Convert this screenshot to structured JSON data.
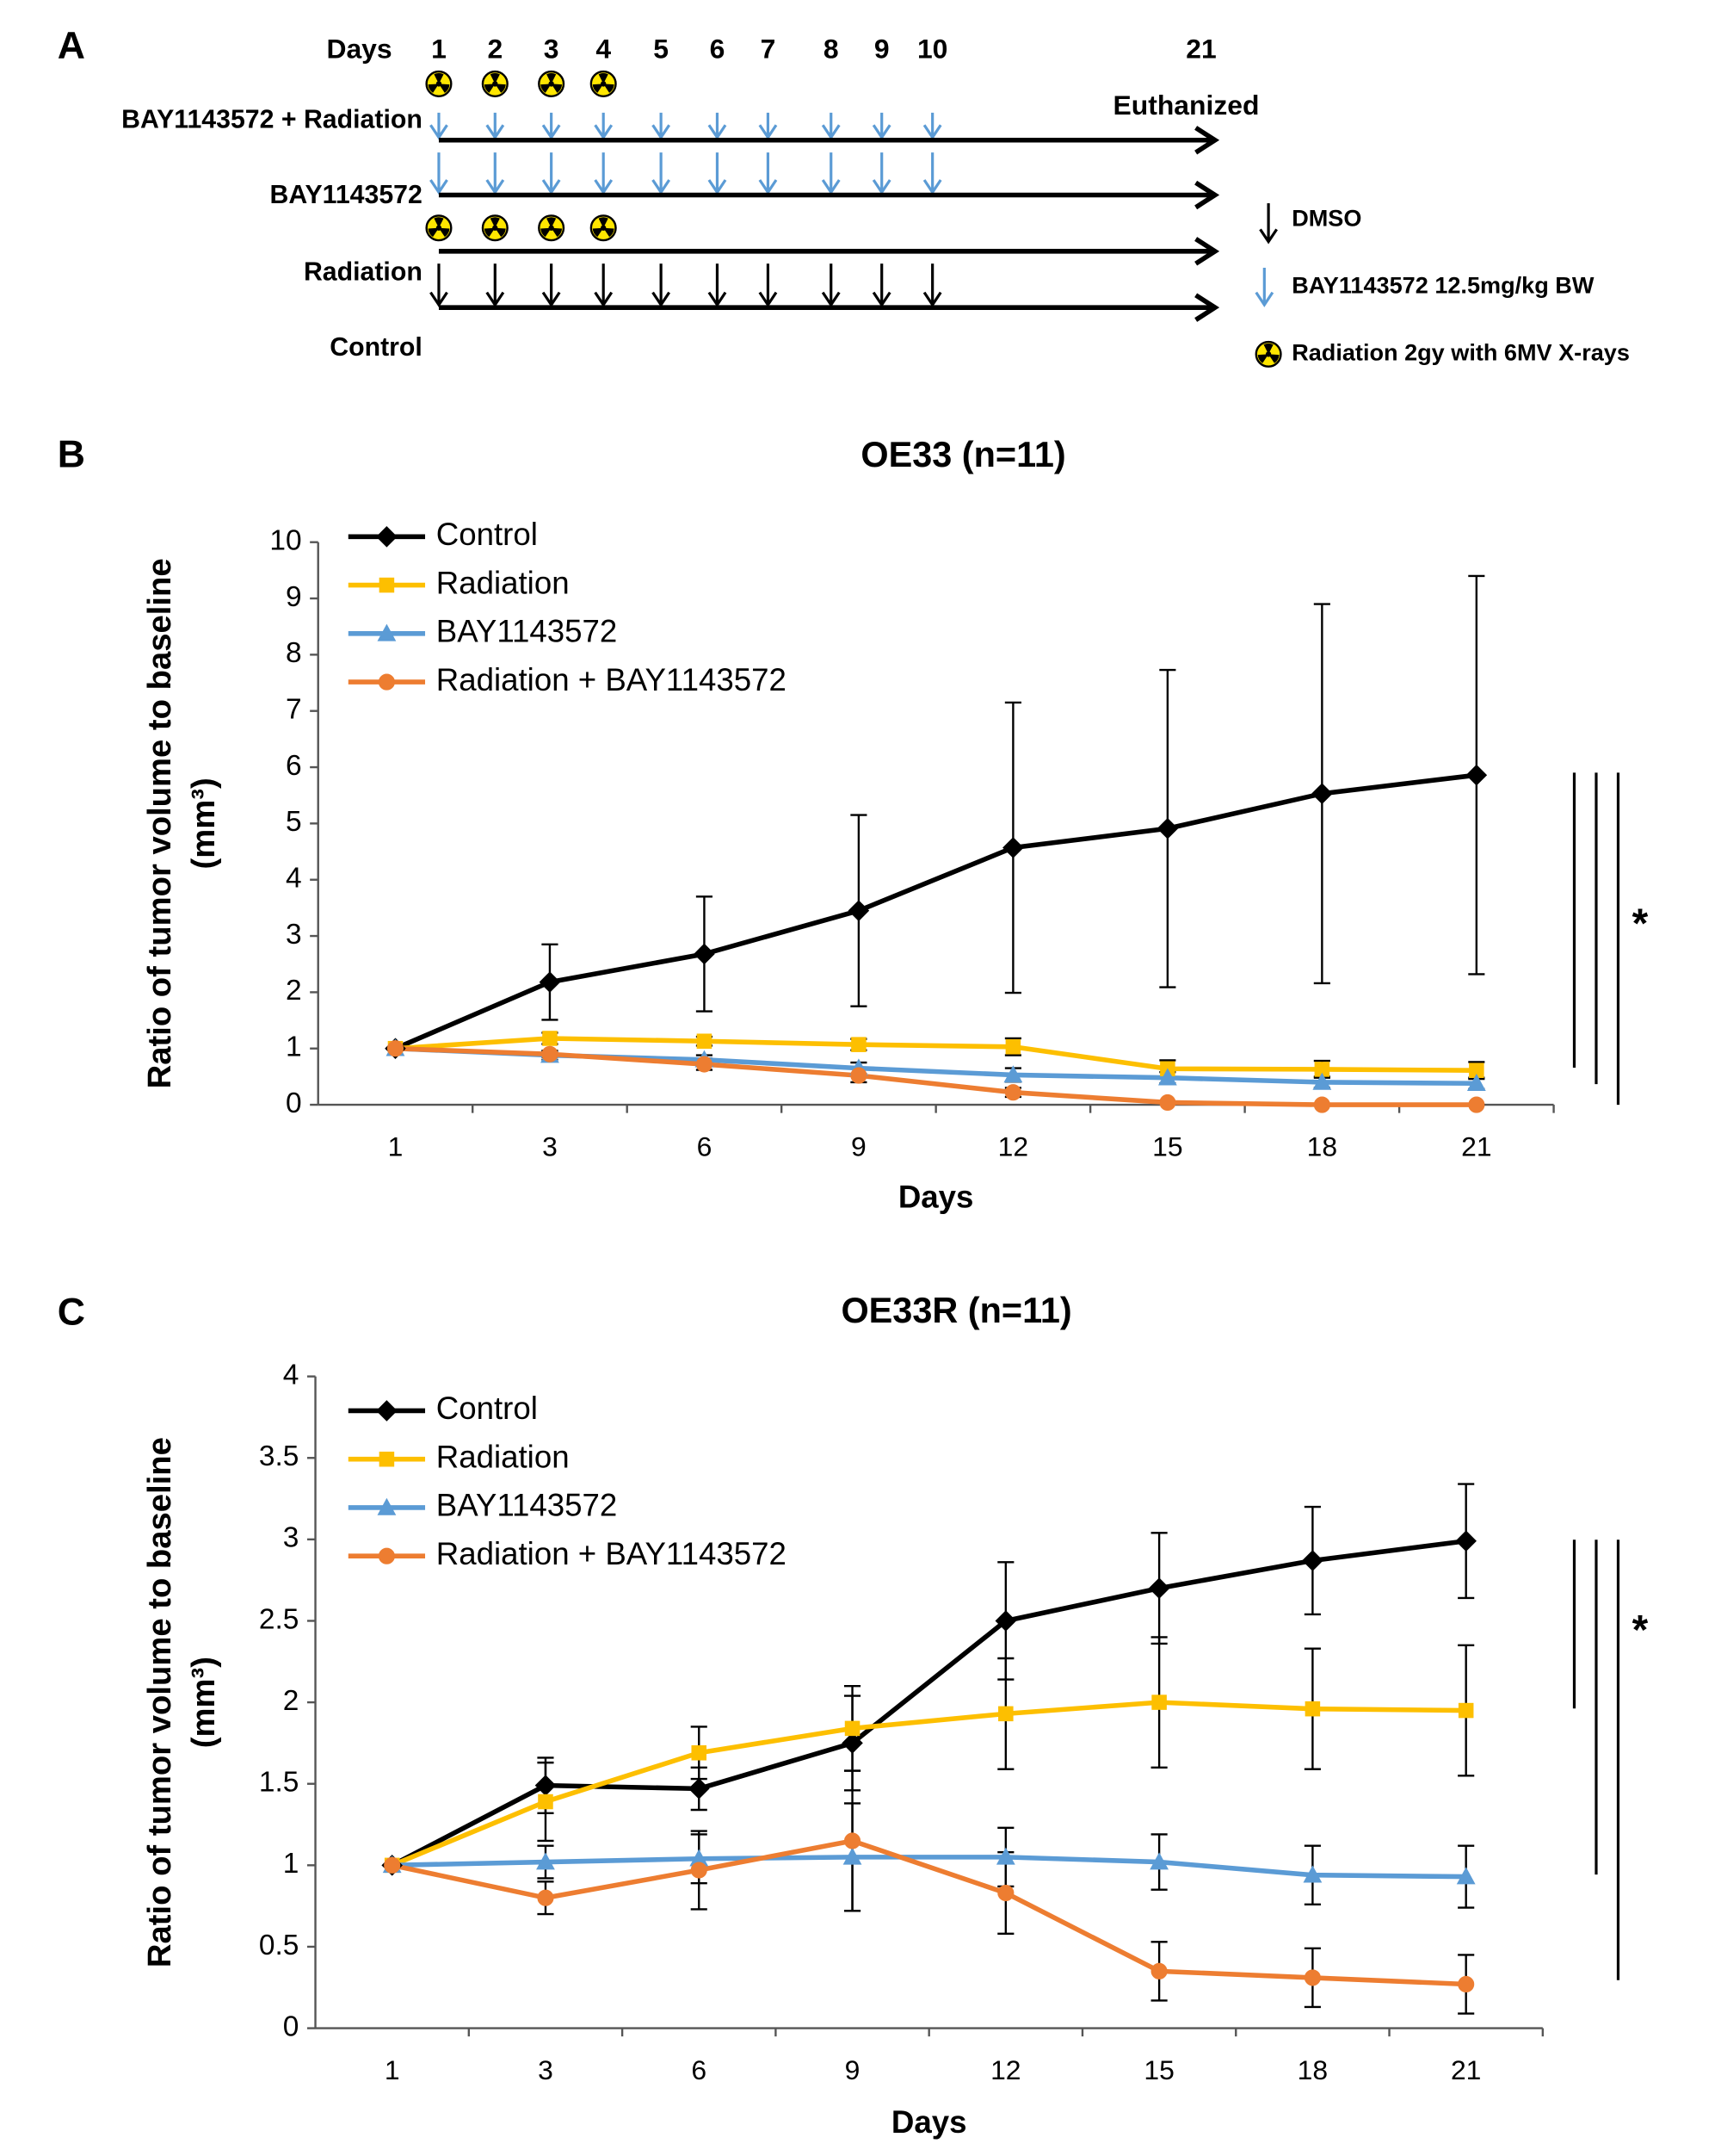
{
  "panels": {
    "a": "A",
    "b": "B",
    "c": "C"
  },
  "schedule": {
    "days_title": "Days",
    "days": [
      1,
      2,
      3,
      4,
      5,
      6,
      7,
      8,
      9,
      10,
      21
    ],
    "rows": [
      "BAY1143572 + Radiation",
      "BAY1143572",
      "Radiation",
      "Control"
    ],
    "end_label": "Euthanized",
    "legend": [
      "DMSO",
      "BAY1143572 12.5mg/kg BW",
      "Radiation 2gy with 6MV  X-rays"
    ]
  },
  "chart_data": [
    {
      "type": "line",
      "title": "OE33 (n=11)",
      "x_label": "Days",
      "y_label": [
        "Ratio of tumor volume to baseline",
        "(mm³)"
      ],
      "categories": [
        1,
        3,
        6,
        9,
        12,
        15,
        18,
        21
      ],
      "ylim": [
        0,
        10
      ],
      "yticks": [
        0,
        1,
        2,
        3,
        4,
        5,
        6,
        7,
        8,
        9,
        10
      ],
      "annotation": "*",
      "series": [
        {
          "name": "Control",
          "color": "#000000",
          "marker": "diamond",
          "values": [
            1,
            2.18,
            2.68,
            3.45,
            4.57,
            4.91,
            5.53,
            5.86
          ],
          "errors": [
            0,
            0.67,
            1.02,
            1.7,
            2.58,
            2.82,
            3.37,
            3.54
          ]
        },
        {
          "name": "Radiation",
          "color": "#fdbf00",
          "marker": "square",
          "values": [
            1,
            1.18,
            1.13,
            1.07,
            1.03,
            0.64,
            0.63,
            0.61
          ],
          "errors": [
            0,
            0.1,
            0.08,
            0.1,
            0.15,
            0.15,
            0.15,
            0.15
          ]
        },
        {
          "name": "BAY1143572",
          "color": "#5b9bd5",
          "marker": "triangle",
          "values": [
            1,
            0.88,
            0.8,
            0.65,
            0.53,
            0.48,
            0.4,
            0.38
          ],
          "errors": [
            0,
            0.08,
            0.08,
            0.1,
            0.12,
            0.1,
            0.1,
            0.1
          ]
        },
        {
          "name": "Radiation + BAY1143572",
          "color": "#ed7d31",
          "marker": "circle",
          "values": [
            1,
            0.9,
            0.72,
            0.52,
            0.22,
            0.04,
            0,
            0
          ],
          "errors": [
            0,
            0.05,
            0.1,
            0.12,
            0.08,
            0.02,
            0,
            0
          ]
        }
      ]
    },
    {
      "type": "line",
      "title": "OE33R (n=11)",
      "x_label": "Days",
      "y_label": [
        "Ratio of tumor volume to baseline",
        "(mm³)"
      ],
      "categories": [
        1,
        3,
        6,
        9,
        12,
        15,
        18,
        21
      ],
      "ylim": [
        0,
        4
      ],
      "yticks": [
        0,
        0.5,
        1,
        1.5,
        2,
        2.5,
        3,
        3.5,
        4
      ],
      "annotation": "*",
      "series": [
        {
          "name": "Control",
          "color": "#000000",
          "marker": "diamond",
          "values": [
            1,
            1.49,
            1.47,
            1.75,
            2.5,
            2.7,
            2.87,
            2.99
          ],
          "errors": [
            0,
            0.17,
            0.13,
            0.29,
            0.36,
            0.34,
            0.33,
            0.35
          ]
        },
        {
          "name": "Radiation",
          "color": "#fdbf00",
          "marker": "square",
          "values": [
            1,
            1.39,
            1.69,
            1.84,
            1.93,
            2.0,
            1.96,
            1.95
          ],
          "errors": [
            0,
            0.24,
            0.16,
            0.26,
            0.34,
            0.4,
            0.37,
            0.4
          ]
        },
        {
          "name": "BAY1143572",
          "color": "#5b9bd5",
          "marker": "triangle",
          "values": [
            1,
            1.02,
            1.04,
            1.05,
            1.05,
            1.02,
            0.94,
            0.93
          ],
          "errors": [
            0,
            0.1,
            0.15,
            0.33,
            0.18,
            0.17,
            0.18,
            0.19
          ]
        },
        {
          "name": "Radiation + BAY1143572",
          "color": "#ed7d31",
          "marker": "circle",
          "values": [
            1,
            0.8,
            0.97,
            1.15,
            0.83,
            0.35,
            0.31,
            0.27
          ],
          "errors": [
            0,
            0.1,
            0.24,
            0.43,
            0.25,
            0.18,
            0.18,
            0.18
          ]
        }
      ]
    }
  ]
}
